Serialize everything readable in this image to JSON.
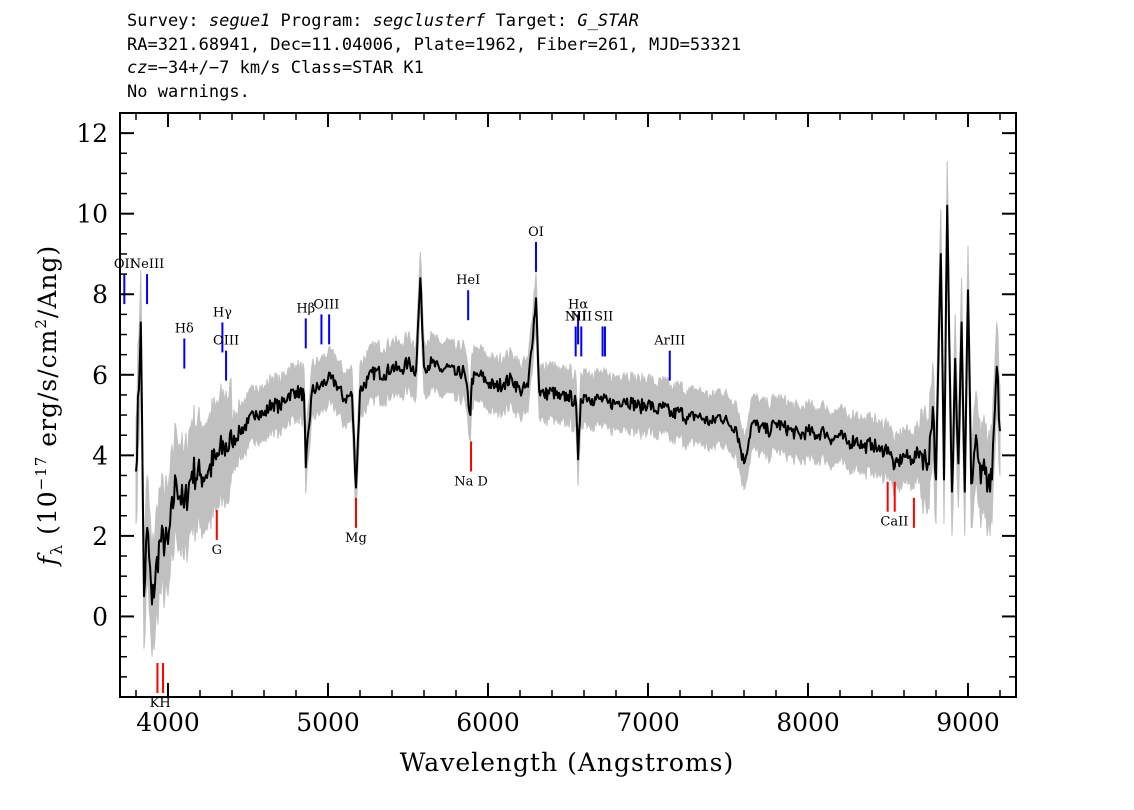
{
  "header": {
    "line1": {
      "survey_key": "Survey: ",
      "survey": "segue1",
      "program_key": " Program: ",
      "program": "segclusterf",
      "target_key": " Target: ",
      "target": "G_STAR"
    },
    "line2": "RA=321.68941, Dec=11.04006, Plate=1962, Fiber=261, MJD=53321",
    "line3": {
      "cz_key": "cz",
      "cz_value": "=−34+/−7 km/s Class=STAR K1"
    },
    "line4": "No warnings."
  },
  "chart_data": {
    "type": "line",
    "xlabel": "Wavelength (Angstroms)",
    "ylabel": "fλ (10⁻¹⁷ erg/s/cm²/Ang)",
    "xlim": [
      3700,
      9300
    ],
    "ylim": [
      -2,
      12.5
    ],
    "x_ticks": [
      4000,
      5000,
      6000,
      7000,
      8000,
      9000
    ],
    "y_ticks": [
      0,
      2,
      4,
      6,
      8,
      10,
      12
    ],
    "grid": false,
    "series": [
      {
        "role": "error-envelope",
        "color": "#c0c0c0"
      },
      {
        "role": "flux",
        "color": "#000000",
        "x": [
          3800,
          3830,
          3850,
          3870,
          3900,
          3950,
          4000,
          4050,
          4100,
          4150,
          4200,
          4250,
          4300,
          4350,
          4400,
          4450,
          4500,
          4550,
          4600,
          4650,
          4700,
          4750,
          4800,
          4850,
          4861,
          4900,
          4950,
          5000,
          5050,
          5100,
          5150,
          5175,
          5200,
          5250,
          5300,
          5350,
          5400,
          5450,
          5500,
          5550,
          5577,
          5600,
          5650,
          5700,
          5750,
          5800,
          5850,
          5890,
          5900,
          5950,
          6000,
          6050,
          6100,
          6150,
          6200,
          6250,
          6300,
          6320,
          6350,
          6400,
          6450,
          6500,
          6550,
          6563,
          6580,
          6600,
          6650,
          6700,
          6750,
          6800,
          6850,
          6900,
          6950,
          7000,
          7050,
          7100,
          7150,
          7200,
          7250,
          7300,
          7350,
          7400,
          7450,
          7500,
          7550,
          7600,
          7650,
          7700,
          7750,
          7800,
          7850,
          7900,
          7950,
          8000,
          8050,
          8100,
          8150,
          8200,
          8250,
          8300,
          8350,
          8400,
          8450,
          8500,
          8542,
          8600,
          8650,
          8700,
          8750,
          8780,
          8800,
          8830,
          8850,
          8870,
          8900,
          8920,
          8940,
          8960,
          8980,
          9000,
          9020,
          9050,
          9080,
          9100,
          9120,
          9150,
          9180,
          9200
        ],
        "y": [
          3.6,
          7.3,
          0.5,
          2.2,
          0.3,
          1.9,
          1.8,
          3.4,
          2.7,
          3.6,
          3.5,
          3.6,
          3.9,
          4.2,
          4.3,
          4.6,
          4.8,
          5.1,
          5.0,
          5.3,
          5.2,
          5.5,
          5.6,
          5.5,
          3.7,
          5.6,
          5.7,
          5.9,
          5.8,
          5.4,
          5.5,
          3.2,
          5.6,
          5.9,
          6.1,
          6.0,
          6.2,
          6.1,
          6.3,
          6.1,
          8.4,
          6.2,
          6.3,
          6.1,
          6.2,
          6.0,
          6.1,
          5.0,
          5.9,
          6.0,
          5.8,
          5.7,
          5.8,
          5.9,
          5.6,
          5.7,
          7.9,
          5.6,
          5.5,
          5.6,
          5.4,
          5.5,
          5.3,
          3.9,
          5.4,
          5.5,
          5.4,
          5.4,
          5.3,
          5.3,
          5.4,
          5.3,
          5.2,
          5.3,
          5.1,
          5.2,
          5.0,
          5.1,
          4.9,
          5.0,
          4.9,
          4.8,
          5.0,
          4.8,
          4.7,
          3.8,
          4.8,
          4.7,
          4.6,
          4.8,
          4.7,
          4.6,
          4.5,
          4.6,
          4.5,
          4.6,
          4.4,
          4.5,
          4.3,
          4.4,
          4.2,
          4.3,
          4.1,
          4.2,
          3.7,
          4.0,
          3.9,
          4.1,
          3.8,
          5.2,
          3.4,
          9.0,
          3.4,
          10.2,
          3.1,
          6.4,
          3.8,
          7.3,
          3.1,
          8.1,
          3.3,
          4.5,
          3.3,
          3.9,
          3.1,
          3.4,
          6.2,
          4.6
        ]
      }
    ],
    "annotations": {
      "emission": [
        {
          "label": "OII",
          "x": 3727,
          "y": 8.5
        },
        {
          "label": "NeIII",
          "x": 3869,
          "y": 8.5
        },
        {
          "label": "Hδ",
          "x": 4102,
          "y": 6.9
        },
        {
          "label": "Hγ",
          "x": 4340,
          "y": 7.3
        },
        {
          "label": "OIII",
          "x": 4363,
          "y": 6.6
        },
        {
          "label": "Hβ",
          "x": 4861,
          "y": 7.4
        },
        {
          "label": "OIII",
          "x": 4959,
          "y": 7.5
        },
        {
          "label": "OIII",
          "x": 5007,
          "y": 7.5
        },
        {
          "label": "HeI",
          "x": 5876,
          "y": 8.1
        },
        {
          "label": "OI",
          "x": 6300,
          "y": 9.3
        },
        {
          "label": "NII",
          "x": 6548,
          "y": 7.2
        },
        {
          "label": "Hα",
          "x": 6563,
          "y": 7.5
        },
        {
          "label": "NII",
          "x": 6583,
          "y": 7.2
        },
        {
          "label": "SII",
          "x": 6716,
          "y": 7.2
        },
        {
          "label": "SII",
          "x": 6731,
          "y": 7.2
        },
        {
          "label": "ArIII",
          "x": 7136,
          "y": 6.6
        }
      ],
      "absorption": [
        {
          "label": "K",
          "x": 3934,
          "y": -1.9
        },
        {
          "label": "H",
          "x": 3969,
          "y": -1.9
        },
        {
          "label": "G",
          "x": 4305,
          "y": 1.9
        },
        {
          "label": "Mg",
          "x": 5175,
          "y": 2.2
        },
        {
          "label": "Na D",
          "x": 5894,
          "y": 3.6
        },
        {
          "label": "CaII",
          "x": 8498,
          "y": 2.6
        },
        {
          "label": "CaII",
          "x": 8542,
          "y": 2.6
        },
        {
          "label": "CaII",
          "x": 8662,
          "y": 2.2
        }
      ],
      "text_labels": [
        {
          "text": "KH",
          "x": 3951,
          "y": -1.9
        },
        {
          "text": "G",
          "x": 4305,
          "y": 1.9
        },
        {
          "text": "Mg",
          "x": 5175,
          "y": 2.2
        },
        {
          "text": "Na D",
          "x": 5894,
          "y": 3.6
        },
        {
          "text": "CaII",
          "x": 8540,
          "y": 2.6
        },
        {
          "text": "OII",
          "x": 3727,
          "y": 8.5
        },
        {
          "text": "NeIII",
          "x": 3869,
          "y": 8.5
        },
        {
          "text": "Hδ",
          "x": 4102,
          "y": 6.9
        },
        {
          "text": "Hγ",
          "x": 4340,
          "y": 7.3
        },
        {
          "text": "OIII",
          "x": 4363,
          "y": 6.6
        },
        {
          "text": "Hβ",
          "x": 4861,
          "y": 7.4
        },
        {
          "text": "OIII",
          "x": 4990,
          "y": 7.5
        },
        {
          "text": "HeI",
          "x": 5876,
          "y": 8.1
        },
        {
          "text": "OI",
          "x": 6300,
          "y": 9.3
        },
        {
          "text": "NII",
          "x": 6548,
          "y": 7.2
        },
        {
          "text": "Hα",
          "x": 6563,
          "y": 7.5
        },
        {
          "text": "NII",
          "x": 6583,
          "y": 7.2
        },
        {
          "text": "SII",
          "x": 6723,
          "y": 7.2
        },
        {
          "text": "ArIII",
          "x": 7136,
          "y": 6.6
        }
      ]
    }
  }
}
